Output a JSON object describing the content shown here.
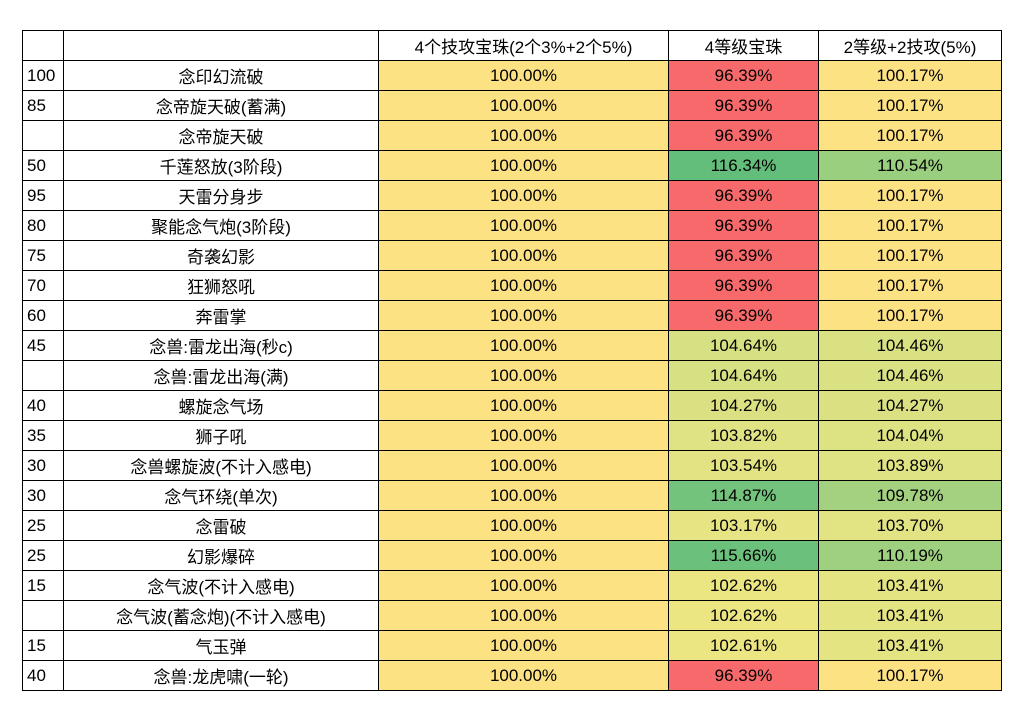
{
  "table": {
    "header": [
      "4个技攻宝珠(2个3%+2个5%)",
      "4等级宝珠",
      "2等级+2技攻(5%)"
    ],
    "rows": [
      {
        "level": 100,
        "skill": "念印幻流破",
        "values": [
          "100.00%",
          "96.39%",
          "100.17%"
        ],
        "fills": [
          "#fde283",
          "#f8696b",
          "#fde283"
        ]
      },
      {
        "level": 85,
        "skill": "念帝旋天破(蓄满)",
        "values": [
          "100.00%",
          "96.39%",
          "100.17%"
        ],
        "fills": [
          "#fde283",
          "#f8696b",
          "#fde283"
        ]
      },
      {
        "skill": "念帝旋天破",
        "values": [
          "100.00%",
          "96.39%",
          "100.17%"
        ],
        "fills": [
          "#fde283",
          "#f8696b",
          "#fde283"
        ]
      },
      {
        "level": 50,
        "skill": "千莲怒放(3阶段)",
        "values": [
          "100.00%",
          "116.34%",
          "110.54%"
        ],
        "fills": [
          "#fde283",
          "#63be7b",
          "#9acf7f"
        ]
      },
      {
        "level": 95,
        "skill": "天雷分身步",
        "values": [
          "100.00%",
          "96.39%",
          "100.17%"
        ],
        "fills": [
          "#fde283",
          "#f8696b",
          "#fde283"
        ]
      },
      {
        "level": 80,
        "skill": "聚能念气炮(3阶段)",
        "values": [
          "100.00%",
          "96.39%",
          "100.17%"
        ],
        "fills": [
          "#fde283",
          "#f8696b",
          "#fde283"
        ]
      },
      {
        "level": 75,
        "skill": "奇袭幻影",
        "values": [
          "100.00%",
          "96.39%",
          "100.17%"
        ],
        "fills": [
          "#fde283",
          "#f8696b",
          "#fde283"
        ]
      },
      {
        "level": 70,
        "skill": "狂狮怒吼",
        "values": [
          "100.00%",
          "96.39%",
          "100.17%"
        ],
        "fills": [
          "#fde283",
          "#f8696b",
          "#fde283"
        ]
      },
      {
        "level": 60,
        "skill": "奔雷掌",
        "values": [
          "100.00%",
          "96.39%",
          "100.17%"
        ],
        "fills": [
          "#fde283",
          "#f8696b",
          "#fde283"
        ]
      },
      {
        "level": 45,
        "skill": "念兽:雷龙出海(秒c)",
        "values": [
          "100.00%",
          "104.64%",
          "104.46%"
        ],
        "fills": [
          "#fde283",
          "#d7e082",
          "#d9e182"
        ]
      },
      {
        "skill": "念兽:雷龙出海(满)",
        "values": [
          "100.00%",
          "104.64%",
          "104.46%"
        ],
        "fills": [
          "#fde283",
          "#d7e082",
          "#d9e182"
        ]
      },
      {
        "level": 40,
        "skill": "螺旋念气场",
        "values": [
          "100.00%",
          "104.27%",
          "104.27%"
        ],
        "fills": [
          "#fde283",
          "#dbe182",
          "#dbe182"
        ]
      },
      {
        "level": 35,
        "skill": "狮子吼",
        "values": [
          "100.00%",
          "103.82%",
          "104.04%"
        ],
        "fills": [
          "#fde283",
          "#e0e383",
          "#dde282"
        ]
      },
      {
        "level": 30,
        "skill": "念兽螺旋波(不计入感电)",
        "values": [
          "100.00%",
          "103.54%",
          "103.89%"
        ],
        "fills": [
          "#fde283",
          "#e3e383",
          "#e0e383"
        ]
      },
      {
        "level": 30,
        "skill": "念气环绕(单次)",
        "values": [
          "100.00%",
          "114.87%",
          "109.78%"
        ],
        "fills": [
          "#fde283",
          "#74c37c",
          "#a3d17f"
        ]
      },
      {
        "level": 25,
        "skill": "念雷破",
        "values": [
          "100.00%",
          "103.17%",
          "103.70%"
        ],
        "fills": [
          "#fde283",
          "#e7e483",
          "#e2e383"
        ]
      },
      {
        "level": 25,
        "skill": "幻影爆碎",
        "values": [
          "100.00%",
          "115.66%",
          "110.19%"
        ],
        "fills": [
          "#fde283",
          "#6bc07b",
          "#9ed07f"
        ]
      },
      {
        "level": 15,
        "skill": "念气波(不计入感电)",
        "values": [
          "100.00%",
          "102.62%",
          "103.41%"
        ],
        "fills": [
          "#fde283",
          "#ebe582",
          "#e5e483"
        ]
      },
      {
        "skill": "念气波(蓄念炮)(不计入感电)",
        "values": [
          "100.00%",
          "102.62%",
          "103.41%"
        ],
        "fills": [
          "#fde283",
          "#ebe582",
          "#e5e483"
        ]
      },
      {
        "level": 15,
        "skill": "气玉弹",
        "values": [
          "100.00%",
          "102.61%",
          "103.41%"
        ],
        "fills": [
          "#fde283",
          "#ebe582",
          "#e5e483"
        ]
      },
      {
        "level": 40,
        "skill": "念兽:龙虎啸(一轮)",
        "values": [
          "100.00%",
          "96.39%",
          "100.17%"
        ],
        "fills": [
          "#fde283",
          "#f8696b",
          "#fde283"
        ]
      }
    ]
  }
}
